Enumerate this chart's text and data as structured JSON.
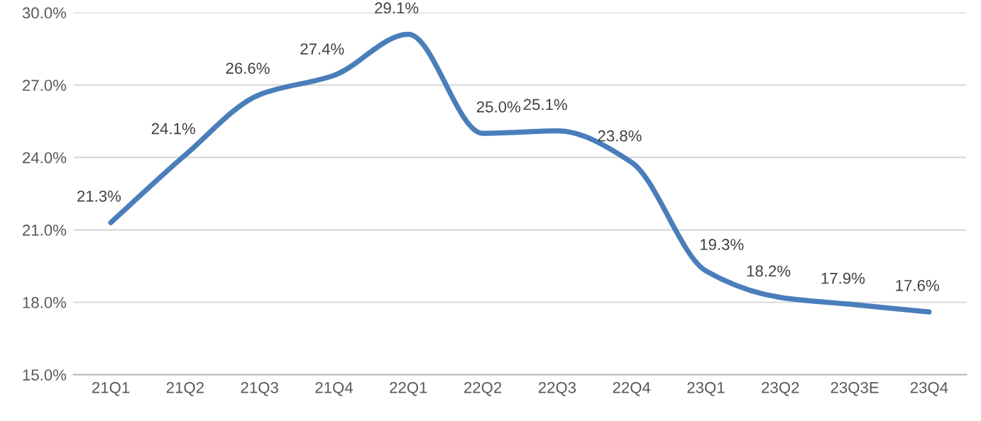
{
  "chart_data": {
    "type": "line",
    "categories": [
      "21Q1",
      "21Q2",
      "21Q3",
      "21Q4",
      "22Q1",
      "22Q2",
      "22Q3",
      "22Q4",
      "23Q1",
      "23Q2",
      "23Q3E",
      "23Q4"
    ],
    "series": [
      {
        "color": "#4a7ebb",
        "values": [
          21.3,
          24.1,
          26.6,
          27.4,
          29.1,
          25.0,
          25.1,
          23.8,
          19.3,
          18.2,
          17.9,
          17.6
        ],
        "value_labels": [
          "21.3%",
          "24.1%",
          "26.6%",
          "27.4%",
          "29.1%",
          "25.0%",
          "25.1%",
          "23.8%",
          "19.3%",
          "18.2%",
          "17.9%",
          "17.6%"
        ]
      }
    ],
    "ylim": [
      15,
      30
    ],
    "yticks": [
      {
        "value": 15,
        "label": "15.0%"
      },
      {
        "value": 18,
        "label": "18.0%"
      },
      {
        "value": 21,
        "label": "21.0%"
      },
      {
        "value": 24,
        "label": "24.0%"
      },
      {
        "value": 27,
        "label": "27.0%"
      },
      {
        "value": 30,
        "label": "30.0%"
      }
    ],
    "grid": "y",
    "marker": "none",
    "line_style": "solid"
  }
}
